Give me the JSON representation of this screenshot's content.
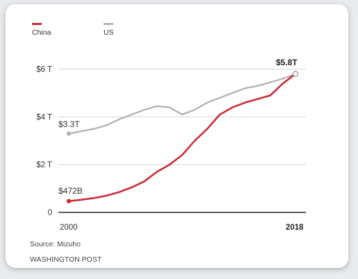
{
  "chart_data": {
    "type": "line",
    "x": [
      2000,
      2001,
      2002,
      2003,
      2004,
      2005,
      2006,
      2007,
      2008,
      2009,
      2010,
      2011,
      2012,
      2013,
      2014,
      2015,
      2016,
      2017,
      2018
    ],
    "series": [
      {
        "name": "China",
        "color": "#cc2a36",
        "values": [
          0.472,
          0.53,
          0.6,
          0.7,
          0.85,
          1.05,
          1.3,
          1.7,
          2.0,
          2.4,
          3.0,
          3.5,
          4.1,
          4.4,
          4.6,
          4.75,
          4.9,
          5.4,
          5.8
        ]
      },
      {
        "name": "US",
        "color": "#b4b4b4",
        "values": [
          3.3,
          3.4,
          3.5,
          3.65,
          3.9,
          4.1,
          4.3,
          4.45,
          4.4,
          4.1,
          4.3,
          4.6,
          4.8,
          5.0,
          5.2,
          5.3,
          5.45,
          5.6,
          5.8
        ]
      }
    ],
    "yticks": [
      {
        "value": 0,
        "label": "0"
      },
      {
        "value": 2,
        "label": "$2 T"
      },
      {
        "value": 4,
        "label": "$4 T"
      },
      {
        "value": 6,
        "label": "$6 T"
      }
    ],
    "xtick_labels": {
      "start": "2000",
      "end": "2018"
    },
    "ylim": [
      0,
      6.6
    ],
    "annotations": {
      "china_start": "$472B",
      "us_start": "$3.3T",
      "end": "$5.8T"
    },
    "legend_position": "top-left",
    "grid": true
  },
  "footer": {
    "source": "Source: Mizuho",
    "credit": "WASHINGTON POST"
  }
}
